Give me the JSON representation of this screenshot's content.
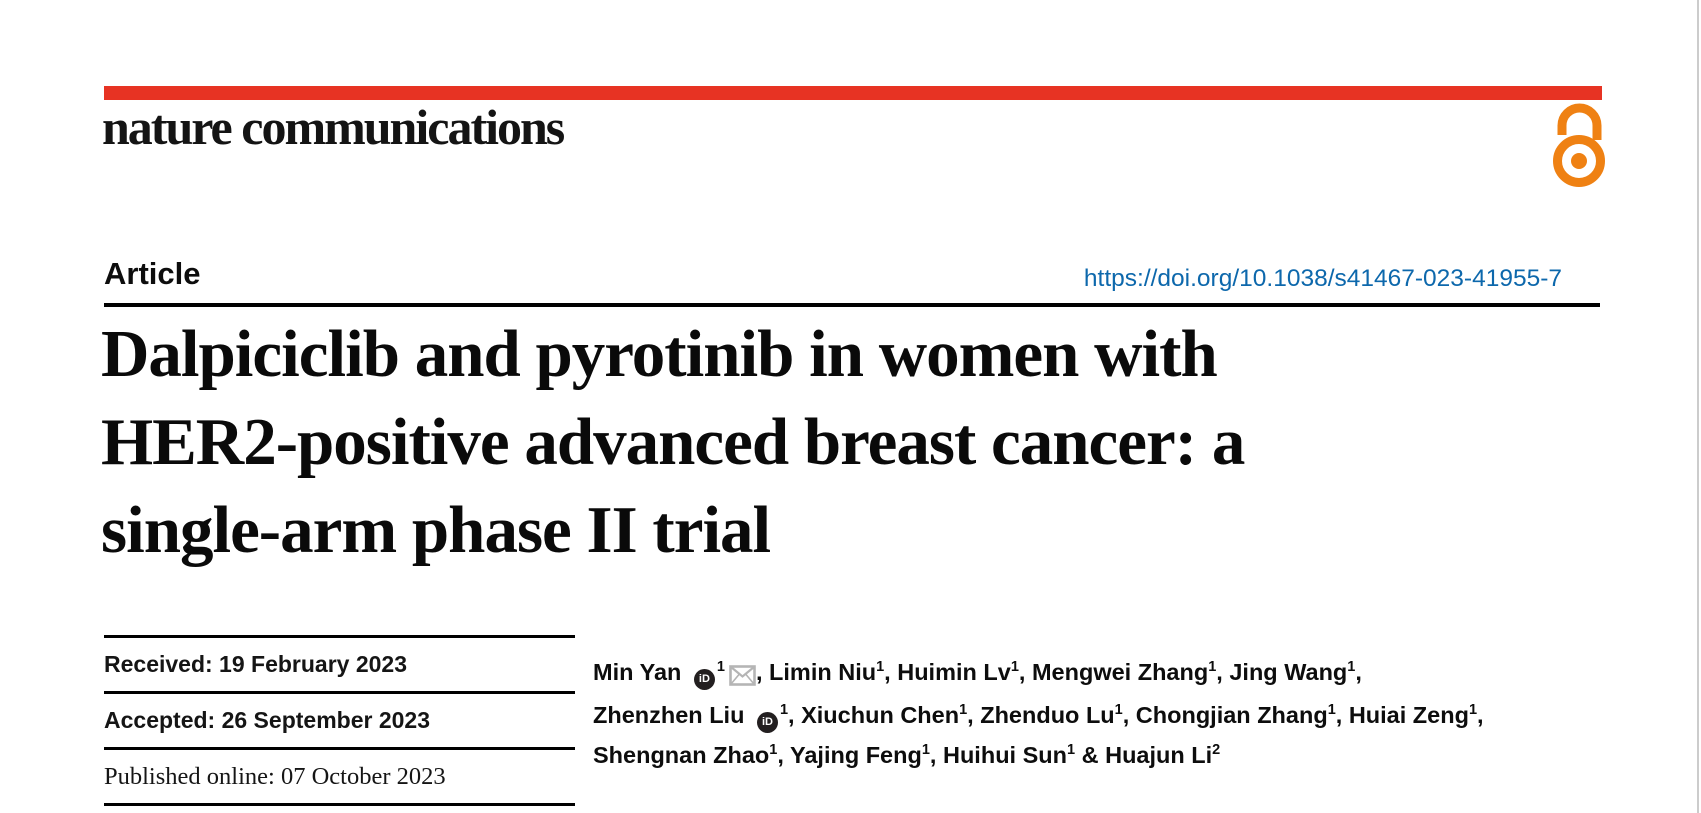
{
  "journal": {
    "name": "nature communications"
  },
  "article": {
    "kind_label": "Article",
    "doi": "https://doi.org/10.1038/s41467-023-41955-7",
    "title_lines": [
      "Dalpiciclib and pyrotinib in women with",
      "HER2-positive advanced breast cancer: a",
      "single-arm phase II trial"
    ]
  },
  "dates": [
    {
      "text": "Received: 19 February 2023"
    },
    {
      "text": "Accepted: 26 September 2023"
    },
    {
      "text": "Published online: 07 October 2023"
    }
  ],
  "authors": {
    "lines": [
      [
        [
          "t",
          "Min Yan "
        ],
        [
          "orcid"
        ],
        [
          "sup",
          "1"
        ],
        [
          "mail"
        ],
        [
          "t",
          ", Limin Niu"
        ],
        [
          "sup",
          "1"
        ],
        [
          "t",
          ", Huimin Lv"
        ],
        [
          "sup",
          "1"
        ],
        [
          "t",
          ", Mengwei Zhang"
        ],
        [
          "sup",
          "1"
        ],
        [
          "t",
          ", Jing Wang"
        ],
        [
          "sup",
          "1"
        ],
        [
          "t",
          ","
        ]
      ],
      [
        [
          "t",
          "Zhenzhen Liu "
        ],
        [
          "orcid"
        ],
        [
          "sup",
          "1"
        ],
        [
          "t",
          ", Xiuchun Chen"
        ],
        [
          "sup",
          "1"
        ],
        [
          "t",
          ", Zhenduo Lu"
        ],
        [
          "sup",
          "1"
        ],
        [
          "t",
          ", Chongjian Zhang"
        ],
        [
          "sup",
          "1"
        ],
        [
          "t",
          ", Huiai Zeng"
        ],
        [
          "sup",
          "1"
        ],
        [
          "t",
          ","
        ]
      ],
      [
        [
          "t",
          "Shengnan Zhao"
        ],
        [
          "sup",
          "1"
        ],
        [
          "t",
          ", Yajing Feng"
        ],
        [
          "sup",
          "1"
        ],
        [
          "t",
          ", Huihui Sun"
        ],
        [
          "sup",
          "1"
        ],
        [
          "t",
          " & Huajun Li"
        ],
        [
          "sup",
          "2"
        ]
      ]
    ]
  },
  "icons": {
    "open_access": "open-access-lock-icon",
    "orcid": "orcid-id-icon",
    "orcid_text": "iD",
    "mail": "envelope-icon"
  },
  "colors": {
    "brand_red": "#e73323",
    "doi_blue": "#0d68ac",
    "oa_orange": "#ef8113",
    "orcid_black": "#231f20",
    "mail_gray": "#b5b5b5",
    "rule_black": "#000000",
    "page_edge_gray": "#cccccc"
  }
}
